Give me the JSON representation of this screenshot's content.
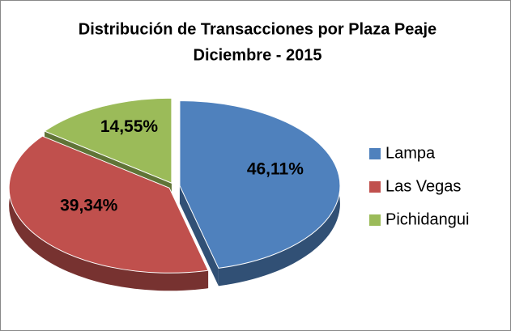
{
  "chart_data": {
    "type": "pie3d",
    "title": "Distribución de Transacciones por Plaza Peaje",
    "subtitle": "Diciembre - 2015",
    "categories": [
      "Lampa",
      "Las Vegas",
      "Pichidangui"
    ],
    "values": [
      46.11,
      39.34,
      14.55
    ],
    "value_labels": [
      "46,11%",
      "39,34%",
      "14,55%"
    ],
    "colors": [
      "#4f81bd",
      "#c0504d",
      "#9bbb59"
    ],
    "legend": "right"
  }
}
